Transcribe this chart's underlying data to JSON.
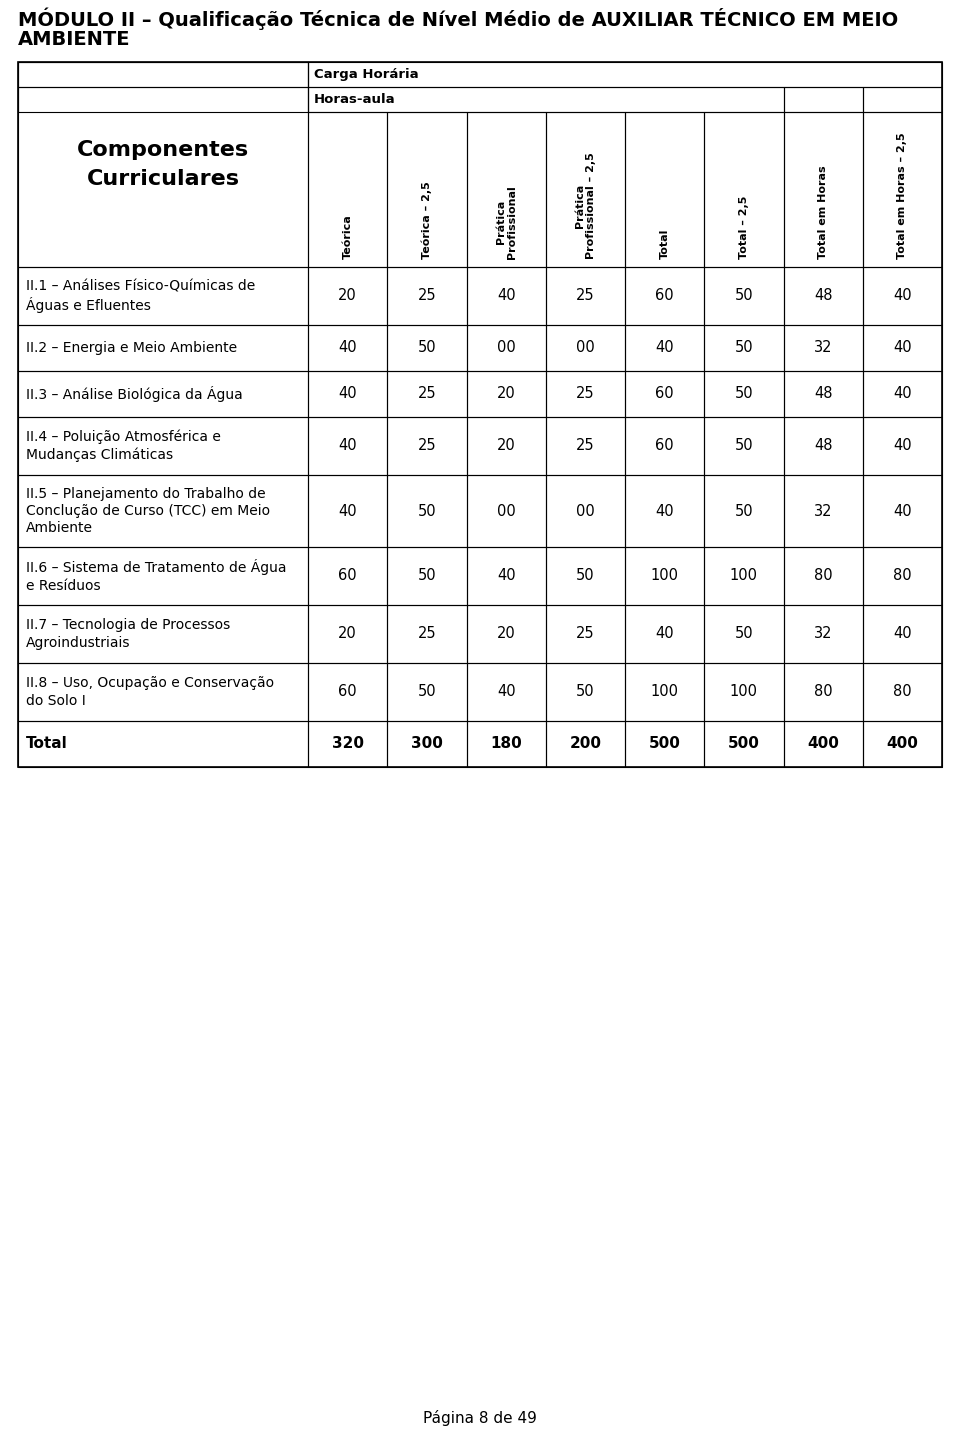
{
  "title_line1": "MÓDULO II – Qualificação Técnica de Nível Médio de AUXILIAR TÉCNICO EM MEIO",
  "title_line2": "AMBIENTE",
  "col_group_label": "Carga Horária",
  "subgroup_label": "Horas-aula",
  "left_header_line1": "Componentes",
  "left_header_line2": "Curriculares",
  "col_headers": [
    "Teórica",
    "Teórica – 2,5",
    "Prática\nProfissional",
    "Prática\nProfissional – 2,5",
    "Total",
    "Total – 2,5",
    "Total em Horas",
    "Total em Horas – 2,5"
  ],
  "rows": [
    {
      "label": "II.1 – Análises Físico-Químicas de\nÁguas e Efluentes",
      "values": [
        "20",
        "25",
        "40",
        "25",
        "60",
        "50",
        "48",
        "40"
      ],
      "bold": false
    },
    {
      "label": "II.2 – Energia e Meio Ambiente",
      "values": [
        "40",
        "50",
        "00",
        "00",
        "40",
        "50",
        "32",
        "40"
      ],
      "bold": false
    },
    {
      "label": "II.3 – Análise Biológica da Água",
      "values": [
        "40",
        "25",
        "20",
        "25",
        "60",
        "50",
        "48",
        "40"
      ],
      "bold": false
    },
    {
      "label": "II.4 – Poluição Atmosférica e\nMudanças Climáticas",
      "values": [
        "40",
        "25",
        "20",
        "25",
        "60",
        "50",
        "48",
        "40"
      ],
      "bold": false
    },
    {
      "label": "II.5 – Planejamento do Trabalho de\nConclução de Curso (TCC) em Meio\nAmbiente",
      "values": [
        "40",
        "50",
        "00",
        "00",
        "40",
        "50",
        "32",
        "40"
      ],
      "bold": false
    },
    {
      "label": "II.6 – Sistema de Tratamento de Água\ne Resíduos",
      "values": [
        "60",
        "50",
        "40",
        "50",
        "100",
        "100",
        "80",
        "80"
      ],
      "bold": false
    },
    {
      "label": "II.7 – Tecnologia de Processos\nAgroindustriais",
      "values": [
        "20",
        "25",
        "20",
        "25",
        "40",
        "50",
        "32",
        "40"
      ],
      "bold": false
    },
    {
      "label": "II.8 – Uso, Ocupação e Conservação\ndo Solo I",
      "values": [
        "60",
        "50",
        "40",
        "50",
        "100",
        "100",
        "80",
        "80"
      ],
      "bold": false
    },
    {
      "label": "Total",
      "values": [
        "320",
        "300",
        "180",
        "200",
        "500",
        "500",
        "400",
        "400"
      ],
      "bold": true
    }
  ],
  "footer": "Página 8 de 49",
  "page_bg": "#ffffff",
  "border_color": "#000000",
  "text_color": "#000000"
}
